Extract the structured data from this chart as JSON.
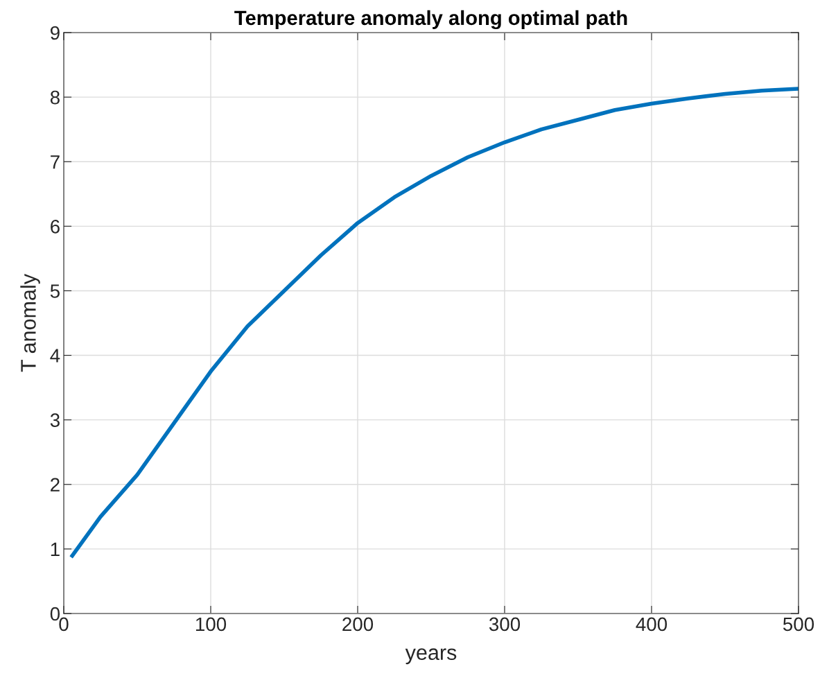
{
  "chart_data": {
    "type": "line",
    "title": "Temperature anomaly along optimal path",
    "xlabel": "years",
    "ylabel": "T anomaly",
    "x": [
      5,
      25,
      50,
      75,
      100,
      125,
      150,
      175,
      200,
      225,
      250,
      275,
      300,
      325,
      350,
      375,
      400,
      425,
      450,
      475,
      500
    ],
    "series": [
      {
        "color": "#0072bd",
        "values": [
          0.87,
          1.5,
          2.15,
          2.95,
          3.75,
          4.45,
          5.0,
          5.55,
          6.05,
          6.45,
          6.78,
          7.07,
          7.3,
          7.5,
          7.65,
          7.8,
          7.9,
          7.98,
          8.05,
          8.1,
          8.13
        ]
      }
    ],
    "xlim": [
      0,
      500
    ],
    "ylim": [
      0,
      9
    ],
    "xticks": [
      0,
      100,
      200,
      300,
      400,
      500
    ],
    "yticks": [
      0,
      1,
      2,
      3,
      4,
      5,
      6,
      7,
      8,
      9
    ],
    "grid": true,
    "legend": false
  }
}
